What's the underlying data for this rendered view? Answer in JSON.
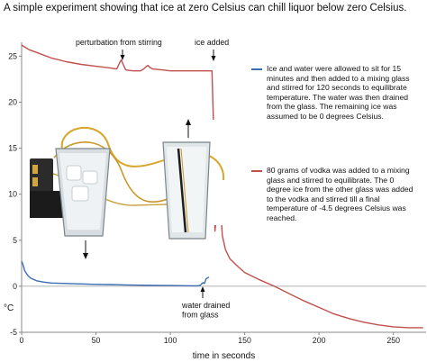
{
  "chart_data": {
    "type": "line",
    "title": "A simple experiment showing that ice at zero Celsius can chill liquor below zero Celsius.",
    "xlabel": "time in seconds",
    "ylabel": "°C",
    "xlim": [
      0,
      272
    ],
    "ylim": [
      -5,
      26.5
    ],
    "xticks": [
      0,
      50,
      100,
      150,
      200,
      250
    ],
    "yticks": [
      -5,
      0,
      5,
      10,
      15,
      20,
      25
    ],
    "grid": false,
    "zero_line": true,
    "series": [
      {
        "color": "#3a6db3",
        "legend_text": "Ice and water were allowed to sit for 15 minutes and then added to a mixing glass and stirred for 120 seconds to equilibrate temperature. The water was then drained from the glass. The remaining ice was assumed to be 0 degrees Celsius.",
        "points": [
          [
            0,
            2.7
          ],
          [
            1,
            2.3
          ],
          [
            2,
            1.7
          ],
          [
            4,
            1.2
          ],
          [
            6,
            0.9
          ],
          [
            10,
            0.6
          ],
          [
            15,
            0.45
          ],
          [
            20,
            0.35
          ],
          [
            30,
            0.3
          ],
          [
            40,
            0.25
          ],
          [
            50,
            0.2
          ],
          [
            60,
            0.18
          ],
          [
            70,
            0.15
          ],
          [
            80,
            0.12
          ],
          [
            90,
            0.1
          ],
          [
            100,
            0.08
          ],
          [
            110,
            0.06
          ],
          [
            118,
            0.05
          ],
          [
            120,
            0.1
          ],
          [
            122,
            0.4
          ],
          [
            123,
            0.3
          ],
          [
            124,
            0.8
          ],
          [
            126,
            1.0
          ]
        ]
      },
      {
        "color": "#c0504d",
        "legend_text": "80 grams of vodka was added to a mixing glass and stirred to equilibrate. The 0 degree ice from the other glass was added to the vodka and stirred till a final temperature of -4.5 degrees Celsius was reached.",
        "points": [
          [
            0,
            26.2
          ],
          [
            2,
            26.0
          ],
          [
            5,
            25.7
          ],
          [
            10,
            25.4
          ],
          [
            15,
            25.1
          ],
          [
            20,
            24.8
          ],
          [
            30,
            24.4
          ],
          [
            40,
            24.1
          ],
          [
            50,
            23.9
          ],
          [
            60,
            23.7
          ],
          [
            64,
            23.6
          ],
          [
            66,
            24.3
          ],
          [
            67,
            24.6
          ],
          [
            68,
            24.2
          ],
          [
            70,
            23.5
          ],
          [
            75,
            23.4
          ],
          [
            80,
            23.4
          ],
          [
            82,
            23.6
          ],
          [
            84,
            23.9
          ],
          [
            85,
            24.0
          ],
          [
            86,
            23.8
          ],
          [
            88,
            23.6
          ],
          [
            95,
            23.5
          ],
          [
            100,
            23.4
          ],
          [
            110,
            23.4
          ],
          [
            120,
            23.4
          ],
          [
            128,
            23.4
          ],
          [
            129,
            18.0
          ],
          [
            130,
            6.0
          ],
          [
            131,
            7.5
          ],
          [
            132,
            12.5
          ],
          [
            133,
            11.0
          ],
          [
            134,
            8.0
          ],
          [
            135,
            5.5
          ],
          [
            137,
            4.0
          ],
          [
            140,
            3.0
          ],
          [
            145,
            2.2
          ],
          [
            150,
            1.5
          ],
          [
            160,
            0.7
          ],
          [
            170,
            0.0
          ],
          [
            180,
            -0.8
          ],
          [
            190,
            -1.6
          ],
          [
            200,
            -2.3
          ],
          [
            210,
            -3.0
          ],
          [
            220,
            -3.5
          ],
          [
            230,
            -3.9
          ],
          [
            240,
            -4.2
          ],
          [
            250,
            -4.4
          ],
          [
            260,
            -4.5
          ],
          [
            270,
            -4.5
          ]
        ]
      }
    ],
    "annotations": [
      {
        "text": "perturbation from stirring",
        "x": 67,
        "y": 24.6
      },
      {
        "text": "ice added",
        "x": 129,
        "y": 23.4
      },
      {
        "text": "water drained\nfrom glass",
        "x": 122,
        "y": 0.4
      }
    ]
  },
  "photo": {
    "description_name": "two glasses with thermocouple probes"
  },
  "colors": {
    "blue": "#3a6db3",
    "red": "#c0504d",
    "axis": "#888888"
  }
}
